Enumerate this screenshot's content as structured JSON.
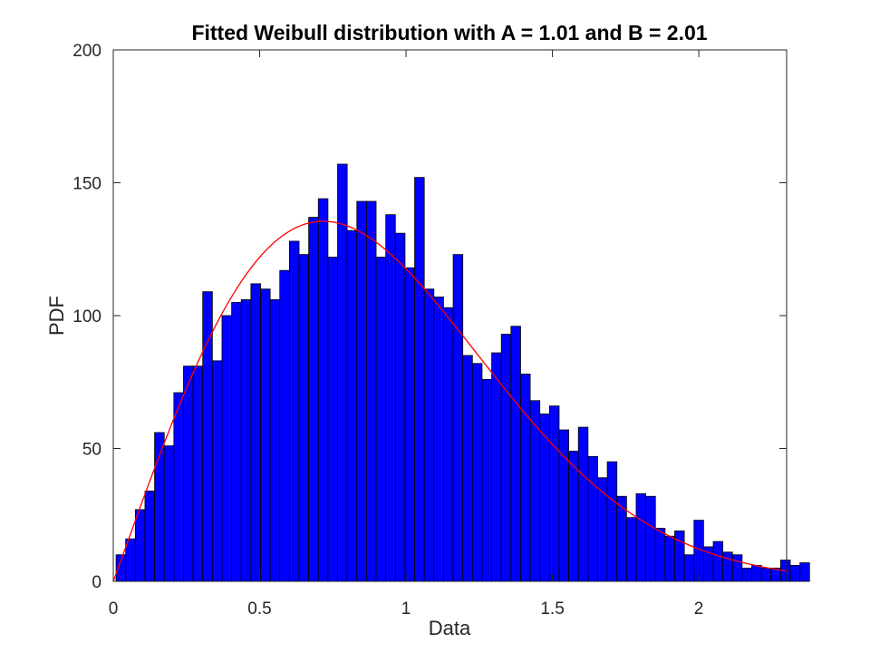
{
  "chart_data": {
    "type": "bar",
    "title": "Fitted Weibull distribution with A = 1.01 and B = 2.01",
    "xlabel": "Data",
    "ylabel": "PDF",
    "xlim": [
      0,
      2.3
    ],
    "ylim": [
      0,
      200
    ],
    "x_ticks": [
      0,
      0.5,
      1,
      1.5,
      2
    ],
    "x_tick_labels": [
      "0",
      "0.5",
      "1",
      "1.5",
      "2"
    ],
    "y_ticks": [
      0,
      50,
      100,
      150,
      200
    ],
    "y_tick_labels": [
      "0",
      "50",
      "100",
      "150",
      "200"
    ],
    "grid": false,
    "colors": {
      "bars": "#0000ff",
      "bar_edge": "#000000",
      "fit_line": "#ff0000"
    },
    "histogram": {
      "bin_start": 0.0095,
      "bin_width": 0.0329,
      "counts": [
        10,
        16,
        27,
        34,
        56,
        51,
        71,
        81,
        81,
        109,
        83,
        100,
        105,
        106,
        112,
        110,
        106,
        117,
        128,
        123,
        137,
        144,
        122,
        157,
        132,
        143,
        143,
        122,
        138,
        131,
        118,
        152,
        110,
        107,
        103,
        123,
        85,
        82,
        76,
        86,
        93,
        96,
        78,
        68,
        63,
        66,
        57,
        49,
        58,
        47,
        39,
        45,
        32,
        24,
        33,
        32,
        20,
        17,
        19,
        10,
        23,
        13,
        15,
        11,
        10,
        5,
        6,
        5,
        5,
        8,
        6,
        7
      ]
    },
    "fit_curve": {
      "distribution": "Weibull",
      "A": 1.01,
      "B": 2.01,
      "scale_count": 135.5,
      "mode_x": 0.72
    }
  }
}
